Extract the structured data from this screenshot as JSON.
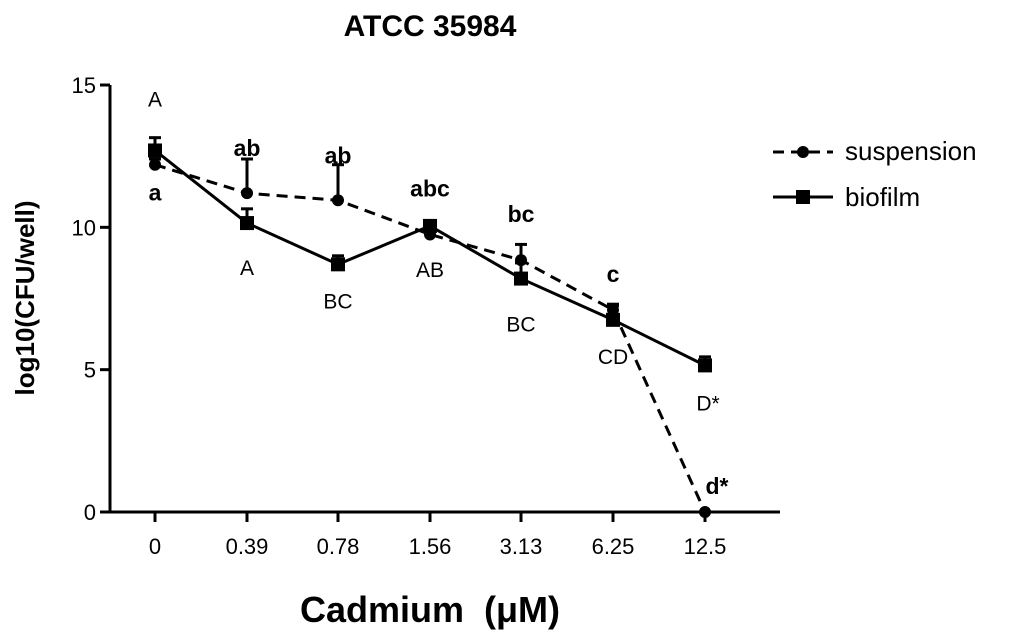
{
  "chart_data": {
    "type": "line",
    "title": "ATCC 35984",
    "xlabel": "Cadmium  (μM)",
    "ylabel": "log10(CFU/well)",
    "categories": [
      "0",
      "0.39",
      "0.78",
      "1.56",
      "3.13",
      "6.25",
      "12.5"
    ],
    "ylim": [
      0,
      15
    ],
    "yticks": [
      "0",
      "5",
      "10",
      "15"
    ],
    "grid": false,
    "legend_position": "right",
    "series": [
      {
        "name": "suspension",
        "line_style": "dashed",
        "marker": "circle",
        "values": [
          12.2,
          11.2,
          10.95,
          9.75,
          8.85,
          7.1,
          0.0
        ],
        "errors": [
          0.2,
          1.2,
          1.25,
          0.15,
          0.55,
          0.2,
          0.0
        ],
        "labels": [
          "a",
          "ab",
          "ab",
          "abc",
          "bc",
          "c",
          "d*"
        ]
      },
      {
        "name": "biofilm",
        "line_style": "solid",
        "marker": "square",
        "values": [
          12.7,
          10.15,
          8.7,
          10.05,
          8.2,
          6.75,
          5.15
        ],
        "errors": [
          0.45,
          0.5,
          0.3,
          0.1,
          0.55,
          0.5,
          0.3
        ],
        "labels": [
          "A",
          "A",
          "BC",
          "AB",
          "BC",
          "CD",
          "D*"
        ]
      }
    ],
    "colors": {
      "line": "#000000"
    }
  }
}
